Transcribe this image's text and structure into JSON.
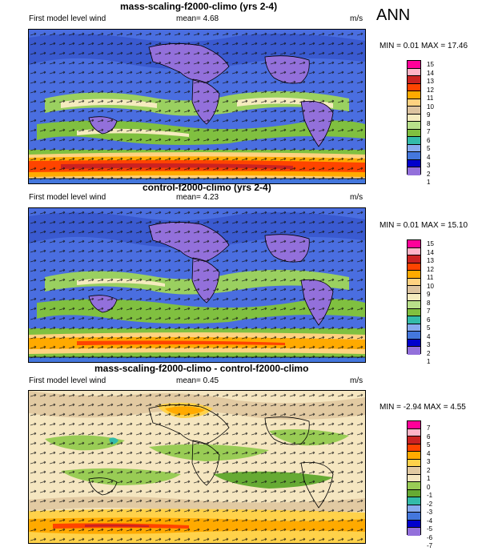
{
  "figure": {
    "season_label": "ANN"
  },
  "panels": [
    {
      "title": "mass-scaling-f2000-climo (yrs 2-4)",
      "subtitle": "First model level wind",
      "mean_text": "mean=  4.68",
      "units": "m/s",
      "min_max_text": "MIN =  0.01  MAX =  17.46",
      "levels": [
        "15",
        "14",
        "13",
        "12",
        "11",
        "10",
        "9",
        "8",
        "7",
        "6",
        "5",
        "4",
        "3",
        "2",
        "1"
      ],
      "colors": [
        "#ff0099",
        "#ffb3c7",
        "#cc2222",
        "#ff4400",
        "#ffaa00",
        "#ffd280",
        "#ddc4a0",
        "#f5ebbe",
        "#b8e08a",
        "#80c040",
        "#33bbaa",
        "#88aaee",
        "#4477dd",
        "#0000cc",
        "#9370db"
      ]
    },
    {
      "title": "control-f2000-climo (yrs 2-4)",
      "subtitle": "First model level wind",
      "mean_text": "mean=  4.23",
      "units": "m/s",
      "min_max_text": "MIN =  0.01  MAX =  15.10",
      "levels": [
        "15",
        "14",
        "13",
        "12",
        "11",
        "10",
        "9",
        "8",
        "7",
        "6",
        "5",
        "4",
        "3",
        "2",
        "1"
      ],
      "colors": [
        "#ff0099",
        "#ffb3c7",
        "#cc2222",
        "#ff4400",
        "#ffaa00",
        "#ffd280",
        "#ddc4a0",
        "#f5ebbe",
        "#b8e08a",
        "#80c040",
        "#33bbaa",
        "#88aaee",
        "#4477dd",
        "#0000cc",
        "#9370db"
      ]
    },
    {
      "title": "mass-scaling-f2000-climo - control-f2000-climo",
      "subtitle": "First model level wind",
      "mean_text": "mean=  0.45",
      "units": "m/s",
      "min_max_text": "MIN = -2.94  MAX =  4.55",
      "levels": [
        "7",
        "6",
        "5",
        "4",
        "3",
        "2",
        "1",
        "0",
        "-1",
        "-2",
        "-3",
        "-4",
        "-5",
        "-6",
        "-7"
      ],
      "colors": [
        "#ff0099",
        "#ffb3c7",
        "#cc2222",
        "#ff4400",
        "#ffaa00",
        "#ffd24a",
        "#e2caa2",
        "#f5e6c0",
        "#99cc55",
        "#66aa33",
        "#33bbaa",
        "#88aaee",
        "#4477dd",
        "#0000cc",
        "#9370db"
      ]
    }
  ]
}
